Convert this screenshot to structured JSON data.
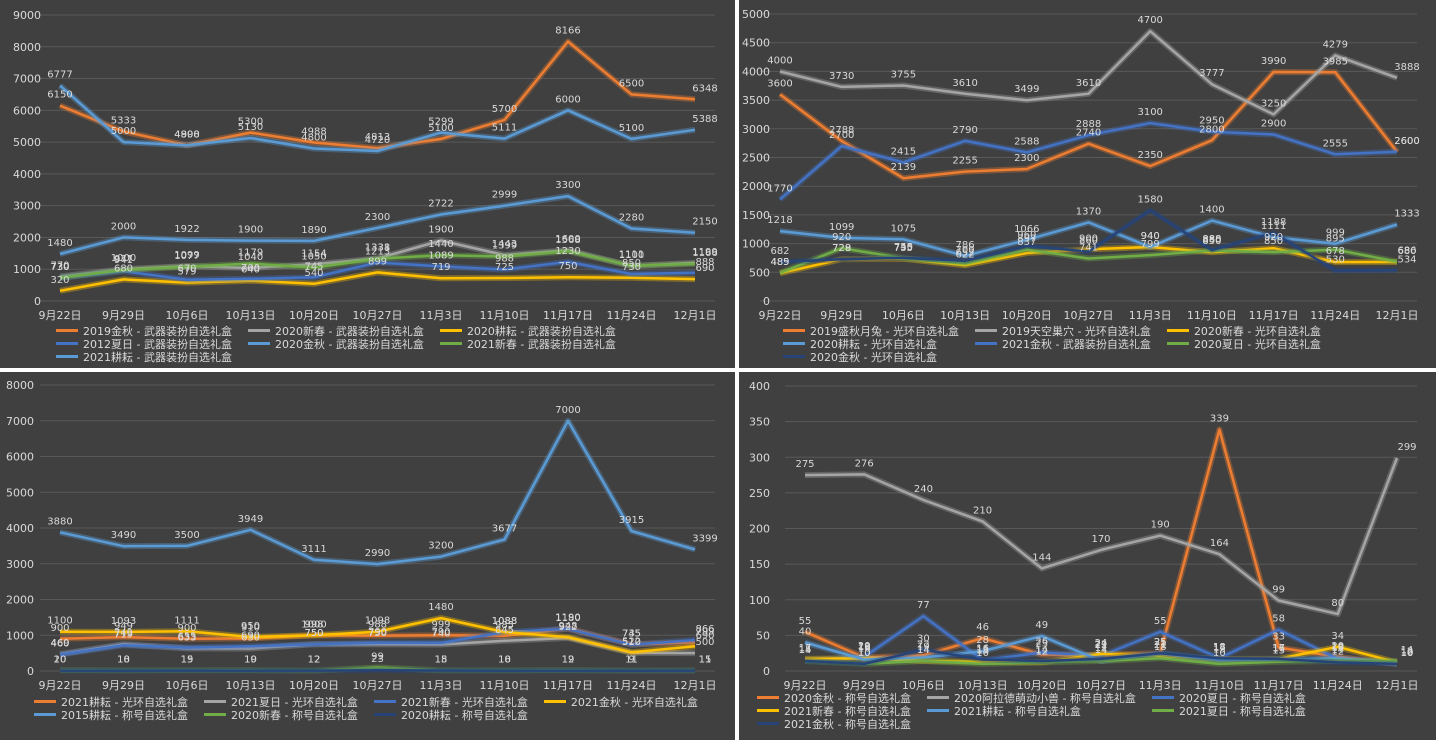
{
  "chart_data": [
    {
      "type": "line",
      "title": "",
      "xlabel": "",
      "ylabel": "",
      "categories": [
        "9月22日",
        "9月29日",
        "10月6日",
        "10月13日",
        "10月20日",
        "10月27日",
        "11月3日",
        "11月10日",
        "11月17日",
        "11月24日",
        "12月1日"
      ],
      "ylim": [
        0,
        9000
      ],
      "yticks": [
        0,
        1000,
        2000,
        3000,
        4000,
        5000,
        6000,
        7000,
        8000,
        9000
      ],
      "grid": true,
      "legend_position": "bottom",
      "series": [
        {
          "name": "2019金秋 - 武器装扮自选礼盒",
          "color": "#ed7d31",
          "values": [
            6150,
            5333,
            4900,
            5300,
            4988,
            4813,
            5100,
            5700,
            8166,
            6500,
            6348
          ]
        },
        {
          "name": "2020新春 - 武器装扮自选礼盒",
          "color": "#a5a5a5",
          "values": [
            770,
            1000,
            1099,
            1040,
            1154,
            1338,
            1900,
            1443,
            1600,
            1100,
            1199
          ]
        },
        {
          "name": "2020耕耘 - 武器装扮自选礼盒",
          "color": "#ffc000",
          "values": [
            320,
            680,
            579,
            640,
            540,
            899,
            719,
            725,
            750,
            730,
            690
          ]
        },
        {
          "name": "2012夏日 - 武器装扮自选礼盒",
          "color": "#4472c4",
          "values": [
            730,
            941,
            670,
            700,
            745,
            1213,
            1089,
            988,
            1230,
            850,
            888
          ]
        },
        {
          "name": "2020金秋 - 武器装扮自选礼盒",
          "color": "#5b9bd5",
          "values": [
            6777,
            5000,
            4898,
            5130,
            4800,
            4720,
            5299,
            5111,
            6000,
            5100,
            5388
          ]
        },
        {
          "name": "2021新春 - 武器装扮自选礼盒",
          "color": "#70ad47",
          "values": [
            730,
            977,
            1077,
            1179,
            1050,
            1331,
            1440,
            1399,
            1568,
            1111,
            1166
          ]
        },
        {
          "name": "2021耕耘 - 武器装扮自选礼盒",
          "color": "#5b9bd5",
          "values": [
            1480,
            2000,
            1922,
            1900,
            1890,
            2300,
            2722,
            2999,
            3300,
            2280,
            2150
          ]
        }
      ]
    },
    {
      "type": "line",
      "title": "",
      "xlabel": "",
      "ylabel": "",
      "categories": [
        "9月22日",
        "9月29日",
        "10月6日",
        "10月13日",
        "10月20日",
        "10月27日",
        "11月3日",
        "11月10日",
        "11月17日",
        "11月24日",
        "12月1日"
      ],
      "ylim": [
        0,
        5000
      ],
      "yticks": [
        0,
        500,
        1000,
        1500,
        2000,
        2500,
        3000,
        3500,
        4000,
        4500,
        5000
      ],
      "grid": true,
      "legend_position": "bottom",
      "series": [
        {
          "name": "2019盛秋月兔 - 光环自选礼盒",
          "color": "#ed7d31",
          "values": [
            3600,
            2788,
            2139,
            2255,
            2300,
            2740,
            2350,
            2800,
            3990,
            3985,
            2600
          ]
        },
        {
          "name": "2019天空巢穴 - 光环自选礼盒",
          "color": "#a5a5a5",
          "values": [
            4000,
            3730,
            3755,
            3610,
            3499,
            3610,
            4700,
            3777,
            3250,
            4279,
            3888
          ]
        },
        {
          "name": "2020新春 - 光环自选礼盒",
          "color": "#ffc000",
          "values": [
            485,
            729,
            735,
            622,
            837,
            900,
            940,
            850,
            920,
            678,
            680
          ]
        },
        {
          "name": "2020耕耘 - 光环自选礼盒",
          "color": "#5b9bd5",
          "values": [
            1218,
            1099,
            1075,
            786,
            1066,
            1370,
            940,
            1400,
            1111,
            999,
            1333
          ]
        },
        {
          "name": "2021金秋 - 武器装扮自选礼盒",
          "color": "#4472c4",
          "values": [
            1770,
            2700,
            2415,
            2790,
            2588,
            2888,
            3100,
            2950,
            2900,
            2555,
            2600
          ]
        },
        {
          "name": "2020夏日 - 光环自选礼盒",
          "color": "#70ad47",
          "values": [
            489,
            920,
            745,
            652,
            897,
            741,
            799,
            880,
            850,
            895,
            686
          ]
        },
        {
          "name": "2020金秋 - 光环自选礼盒",
          "color": "#264478",
          "values": [
            682,
            728,
            750,
            700,
            960,
            860,
            1580,
            888,
            1188,
            530,
            534
          ]
        }
      ]
    },
    {
      "type": "line",
      "title": "",
      "xlabel": "",
      "ylabel": "",
      "categories": [
        "9月22日",
        "9月29日",
        "10月6日",
        "10月13日",
        "10月20日",
        "10月27日",
        "11月3日",
        "11月10日",
        "11月17日",
        "11月24日",
        "12月1日"
      ],
      "ylim": [
        0,
        8000
      ],
      "yticks": [
        0,
        1000,
        2000,
        3000,
        4000,
        5000,
        6000,
        7000,
        8000
      ],
      "grid": true,
      "legend_position": "bottom",
      "series": [
        {
          "name": "2021耕耘 - 光环自选礼盒",
          "color": "#ed7d31",
          "values": [
            900,
            949,
            900,
            910,
            1000,
            988,
            999,
            985,
            1190,
            745,
            799
          ]
        },
        {
          "name": "2021夏日 - 光环自选礼盒",
          "color": "#a5a5a5",
          "values": [
            469,
            749,
            633,
            630,
            750,
            750,
            740,
            845,
            922,
            510,
            500
          ]
        },
        {
          "name": "2021新春 - 光环自选礼盒",
          "color": "#4472c4",
          "values": [
            460,
            719,
            655,
            690,
            750,
            790,
            790,
            1088,
            1180,
            735,
            866
          ]
        },
        {
          "name": "2021金秋 - 光环自选礼盒",
          "color": "#ffc000",
          "values": [
            1100,
            1093,
            1111,
            950,
            998,
            1098,
            1480,
            1088,
            948,
            522,
            690
          ]
        },
        {
          "name": "2015耕耘 - 称号自选礼盒",
          "color": "#5b9bd5",
          "values": [
            3880,
            3490,
            3500,
            3949,
            3111,
            2990,
            3200,
            3677,
            7000,
            3915,
            3399
          ]
        },
        {
          "name": "2020新春 - 称号自选礼盒",
          "color": "#70ad47",
          "values": [
            20,
            18,
            19,
            19,
            12,
            99,
            18,
            18,
            19,
            11,
            15
          ]
        },
        {
          "name": "2020耕耘 - 称号自选礼盒",
          "color": "#264478",
          "values": [
            10,
            10,
            15,
            10,
            12,
            23,
            15,
            10,
            12,
            9,
            11
          ]
        }
      ]
    },
    {
      "type": "line",
      "title": "",
      "xlabel": "",
      "ylabel": "",
      "categories": [
        "9月22日",
        "9月29日",
        "10月6日",
        "10月13日",
        "10月20日",
        "10月27日",
        "11月3日",
        "11月10日",
        "11月17日",
        "11月24日",
        "12月1日"
      ],
      "ylim": [
        0,
        400
      ],
      "yticks": [
        0,
        50,
        100,
        150,
        200,
        250,
        300,
        350,
        400
      ],
      "grid": true,
      "legend_position": "bottom",
      "series": [
        {
          "name": "2020金秋 - 称号自选礼盒",
          "color": "#ed7d31",
          "values": [
            55,
            19,
            22,
            46,
            23,
            22,
            25,
            339,
            33,
            20,
            10
          ]
        },
        {
          "name": "2020阿拉德萌动小兽 - 称号自选礼盒",
          "color": "#a5a5a5",
          "values": [
            275,
            276,
            240,
            210,
            144,
            170,
            190,
            164,
            99,
            80,
            299
          ]
        },
        {
          "name": "2020夏日 - 称号自选礼盒",
          "color": "#4472c4",
          "values": [
            15,
            20,
            77,
            15,
            26,
            21,
            55,
            18,
            58,
            17,
            12
          ]
        },
        {
          "name": "2021新春 - 称号自选礼盒",
          "color": "#ffc000",
          "values": [
            17,
            18,
            14,
            13,
            12,
            24,
            21,
            17,
            17,
            34,
            12
          ]
        },
        {
          "name": "2021耕耘 - 称号自选礼盒",
          "color": "#5b9bd5",
          "values": [
            40,
            16,
            19,
            28,
            49,
            14,
            25,
            15,
            16,
            18,
            10
          ]
        },
        {
          "name": "2021夏日 - 称号自选礼盒",
          "color": "#70ad47",
          "values": [
            14,
            10,
            14,
            10,
            12,
            14,
            18,
            10,
            13,
            14,
            14
          ]
        },
        {
          "name": "2021金秋 - 称号自选礼盒",
          "color": "#264478",
          "values": [
            14,
            10,
            30,
            16,
            14,
            17,
            25,
            18,
            17,
            12,
            10
          ]
        }
      ]
    }
  ]
}
